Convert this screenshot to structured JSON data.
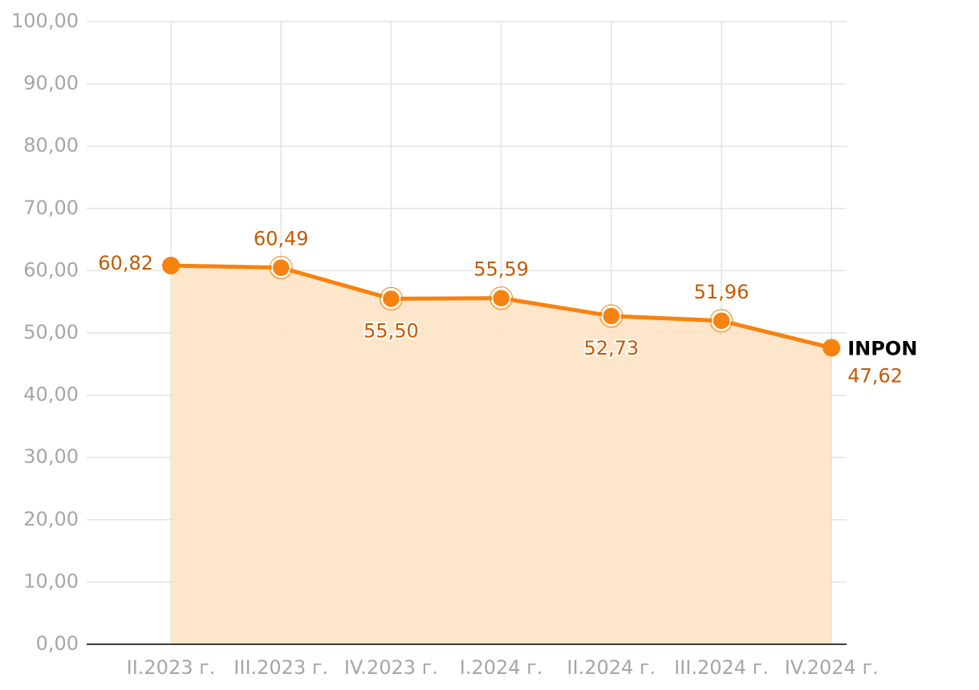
{
  "chart_data": {
    "type": "line",
    "categories": [
      "II.2023 г.",
      "III.2023 г.",
      "IV.2023 г.",
      "I.2024 г.",
      "II.2024 г.",
      "III.2024 г.",
      "IV.2024 г."
    ],
    "series": [
      {
        "name": "INPON",
        "color": "#f7820f",
        "area_color": "#fde3c3",
        "label_color": "#c55a00",
        "values": [
          60.82,
          60.49,
          55.5,
          55.59,
          52.73,
          51.96,
          47.62
        ],
        "value_labels": [
          "60,82",
          "60,49",
          "55,50",
          "55,59",
          "52,73",
          "51,96",
          "47,62"
        ]
      }
    ],
    "ylim": [
      0,
      100
    ],
    "yticks": [
      {
        "value": 0,
        "label": "0,00"
      },
      {
        "value": 10,
        "label": "10,00"
      },
      {
        "value": 20,
        "label": "20,00"
      },
      {
        "value": 30,
        "label": "30,00"
      },
      {
        "value": 40,
        "label": "40,00"
      },
      {
        "value": 50,
        "label": "50,00"
      },
      {
        "value": 60,
        "label": "60,00"
      },
      {
        "value": 70,
        "label": "70,00"
      },
      {
        "value": 80,
        "label": "80,00"
      },
      {
        "value": 90,
        "label": "90,00"
      },
      {
        "value": 100,
        "label": "100,00"
      }
    ],
    "grid": true
  }
}
